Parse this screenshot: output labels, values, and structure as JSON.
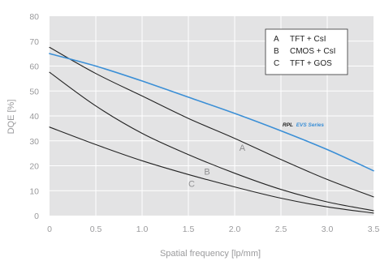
{
  "chart_data": {
    "type": "line",
    "xlabel": "Spatial frequency [lp/mm]",
    "ylabel": "DQE [%]",
    "xlim": [
      0,
      3.5
    ],
    "ylim": [
      0,
      80
    ],
    "xticks": [
      "0",
      "0.5",
      "1.0",
      "1.5",
      "2.0",
      "2.5",
      "3.0",
      "3.5"
    ],
    "yticks": [
      "0",
      "10",
      "20",
      "30",
      "40",
      "50",
      "60",
      "70",
      "80"
    ],
    "grid": true,
    "legend_position": "top-right",
    "legend": [
      {
        "key": "A",
        "text": "TFT + CsI"
      },
      {
        "key": "B",
        "text": "CMOS + CsI"
      },
      {
        "key": "C",
        "text": "TFT + GOS"
      }
    ],
    "annotation": {
      "prefix": "RPL",
      "text": "EVS Series"
    },
    "series": [
      {
        "name": "A",
        "label": "A",
        "color": "#222222",
        "x": [
          0,
          0.5,
          1.0,
          1.5,
          2.0,
          2.5,
          3.0,
          3.5
        ],
        "y": [
          67.5,
          57,
          48,
          39,
          31,
          22.5,
          14.5,
          7.5
        ]
      },
      {
        "name": "B",
        "label": "B",
        "color": "#222222",
        "x": [
          0,
          0.5,
          1.0,
          1.5,
          2.0,
          2.5,
          3.0,
          3.5
        ],
        "y": [
          57.5,
          44,
          33,
          24.5,
          17,
          10.5,
          5.5,
          2
        ]
      },
      {
        "name": "C",
        "label": "C",
        "color": "#222222",
        "x": [
          0,
          0.5,
          1.0,
          1.5,
          2.0,
          2.5,
          3.0,
          3.5
        ],
        "y": [
          35.5,
          28.5,
          22,
          16.5,
          11.5,
          7,
          3.5,
          1
        ]
      },
      {
        "name": "RPL EVS Series",
        "label": "EVS Series",
        "color": "#3b8fd6",
        "x": [
          0,
          0.5,
          1.0,
          1.5,
          2.0,
          2.5,
          3.0,
          3.5
        ],
        "y": [
          65,
          60,
          54,
          47.5,
          41,
          34,
          26.5,
          18
        ]
      }
    ]
  }
}
